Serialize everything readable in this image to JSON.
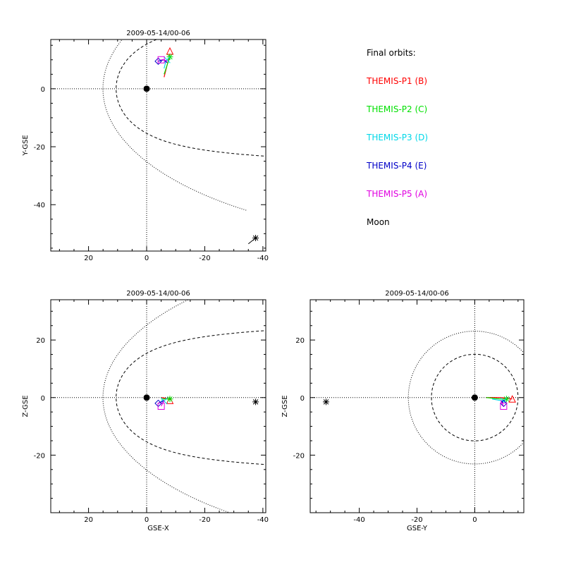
{
  "legend": {
    "title": "Final orbits:",
    "entries": [
      {
        "label": "THEMIS-P1 (B)",
        "color": "#ff0000"
      },
      {
        "label": "THEMIS-P2 (C)",
        "color": "#00e000"
      },
      {
        "label": "THEMIS-P3 (D)",
        "color": "#00d8e8"
      },
      {
        "label": "THEMIS-P4 (E)",
        "color": "#0000c8"
      },
      {
        "label": "THEMIS-P5 (A)",
        "color": "#e000e0"
      },
      {
        "label": "Moon",
        "color": "#000000"
      }
    ]
  },
  "chart_data": [
    {
      "type": "scatter",
      "panel": "xy",
      "title": "2009-05-14/00-06",
      "xlabel": "",
      "ylabel": "Y-GSE",
      "xlim": [
        33,
        -41
      ],
      "ylim": [
        -56,
        17
      ],
      "xticks": [
        20,
        0,
        -20,
        -40
      ],
      "yticks": [
        -40,
        -20,
        0
      ],
      "earth": [
        0,
        0
      ],
      "moon": [
        -37.5,
        -51.5
      ],
      "moon_track": [
        [
          -35,
          -53.5
        ],
        [
          -37.5,
          -51.5
        ]
      ],
      "spacecraft": [
        {
          "name": "THEMIS-P1 (B)",
          "track": [
            [
              -6,
              4
            ],
            [
              -7,
              8
            ],
            [
              -8,
              12
            ]
          ],
          "end": [
            -8,
            13
          ],
          "marker": "triangle"
        },
        {
          "name": "THEMIS-P2 (C)",
          "track": [
            [
              -6,
              5
            ],
            [
              -7,
              8
            ],
            [
              -8,
              11
            ]
          ],
          "end": [
            -8,
            11
          ],
          "marker": "asterisk"
        },
        {
          "name": "THEMIS-P3 (D)",
          "track": [
            [
              -6,
              7
            ],
            [
              -6.5,
              9
            ],
            [
              -7,
              10
            ]
          ],
          "end": [
            -7,
            10
          ],
          "marker": "x"
        },
        {
          "name": "THEMIS-P4 (E)",
          "track": [
            [
              -7,
              9
            ],
            [
              -6,
              10
            ],
            [
              -4,
              9.5
            ]
          ],
          "end": [
            -4,
            9.5
          ],
          "marker": "diamond"
        },
        {
          "name": "THEMIS-P5 (A)",
          "track": [
            [
              -7,
              9.5
            ],
            [
              -6,
              10
            ],
            [
              -5,
              10
            ]
          ],
          "end": [
            -5,
            10
          ],
          "marker": "square"
        }
      ]
    },
    {
      "type": "scatter",
      "panel": "xz",
      "title": "2009-05-14/00-06",
      "xlabel": "GSE-X",
      "ylabel": "Z-GSE",
      "xlim": [
        33,
        -41
      ],
      "ylim": [
        -40,
        34
      ],
      "xticks": [
        20,
        0,
        -20,
        -40
      ],
      "yticks": [
        20,
        0,
        -20
      ],
      "earth": [
        0,
        0
      ],
      "moon": [
        -37.5,
        -1.5
      ],
      "spacecraft": [
        {
          "name": "THEMIS-P1 (B)",
          "track": [
            [
              -5,
              0
            ],
            [
              -8,
              -0.5
            ]
          ],
          "end": [
            -8,
            -1
          ],
          "marker": "triangle"
        },
        {
          "name": "THEMIS-P2 (C)",
          "track": [
            [
              -5,
              -0.5
            ],
            [
              -8,
              -0.5
            ]
          ],
          "end": [
            -8,
            -0.5
          ],
          "marker": "asterisk"
        },
        {
          "name": "THEMIS-P3 (D)",
          "track": [
            [
              -5,
              -1
            ],
            [
              -6,
              -1.2
            ]
          ],
          "end": [
            -6,
            -1.2
          ],
          "marker": "x"
        },
        {
          "name": "THEMIS-P4 (E)",
          "track": [
            [
              -6,
              -1
            ],
            [
              -4,
              -2
            ]
          ],
          "end": [
            -4,
            -2
          ],
          "marker": "diamond"
        },
        {
          "name": "THEMIS-P5 (A)",
          "track": [
            [
              -6,
              -1
            ],
            [
              -5,
              -3
            ]
          ],
          "end": [
            -5,
            -3
          ],
          "marker": "square"
        }
      ]
    },
    {
      "type": "scatter",
      "panel": "yz",
      "title": "2009-05-14/00-06",
      "xlabel": "GSE-Y",
      "ylabel": "Z-GSE",
      "xlim": [
        -57,
        17
      ],
      "ylim": [
        -40,
        34
      ],
      "xticks": [
        -40,
        -20,
        0
      ],
      "yticks": [
        20,
        0,
        -20
      ],
      "earth": [
        0,
        0
      ],
      "moon": [
        -51.5,
        -1.5
      ],
      "spacecraft": [
        {
          "name": "THEMIS-P1 (B)",
          "track": [
            [
              4,
              0
            ],
            [
              9,
              0
            ],
            [
              13,
              -0.5
            ]
          ],
          "end": [
            13,
            -0.5
          ],
          "marker": "triangle"
        },
        {
          "name": "THEMIS-P2 (C)",
          "track": [
            [
              4,
              0
            ],
            [
              9,
              -0.5
            ],
            [
              11,
              -0.5
            ]
          ],
          "end": [
            11,
            -0.5
          ],
          "marker": "asterisk"
        },
        {
          "name": "THEMIS-P3 (D)",
          "track": [
            [
              6,
              -0.5
            ],
            [
              10,
              -1.2
            ]
          ],
          "end": [
            10,
            -1.2
          ],
          "marker": "x"
        },
        {
          "name": "THEMIS-P4 (E)",
          "track": [
            [
              9,
              -1
            ],
            [
              10,
              -2
            ]
          ],
          "end": [
            10,
            -2
          ],
          "marker": "diamond"
        },
        {
          "name": "THEMIS-P5 (A)",
          "track": [
            [
              9,
              -1
            ],
            [
              10,
              -3
            ]
          ],
          "end": [
            10,
            -3
          ],
          "marker": "square"
        }
      ]
    }
  ]
}
